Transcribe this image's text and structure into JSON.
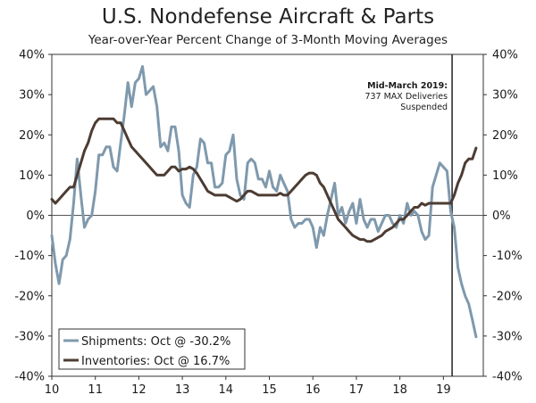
{
  "header": {
    "title": "U.S. Nondefense Aircraft & Parts",
    "subtitle": "Year-over-Year Percent Change of 3-Month Moving Averages"
  },
  "chart_data": {
    "type": "line",
    "title": "U.S. Nondefense Aircraft & Parts",
    "subtitle": "Year-over-Year Percent Change of 3-Month Moving Averages",
    "xlim": [
      2010,
      2019.917
    ],
    "ylim": [
      -40,
      40
    ],
    "y_ticks": [
      -40,
      -30,
      -20,
      -10,
      0,
      10,
      20,
      30,
      40
    ],
    "y_tick_labels": [
      "-40%",
      "-30%",
      "-20%",
      "-10%",
      "0%",
      "10%",
      "20%",
      "30%",
      "40%"
    ],
    "x_tick_labels": [
      "10",
      "11",
      "12",
      "13",
      "14",
      "15",
      "16",
      "17",
      "18",
      "19"
    ],
    "grid": false,
    "legend_position": "bottom-left",
    "annotation": {
      "x": 2019.2,
      "lines": [
        "Mid-March 2019:",
        "737 MAX Deliveries",
        "Suspended"
      ]
    },
    "series": [
      {
        "name": "Shipments",
        "legend_label": "Shipments: Oct @ -30.2%",
        "color": "#7f99ad",
        "points": [
          [
            2010.0,
            -5
          ],
          [
            2010.083,
            -12
          ],
          [
            2010.167,
            -17
          ],
          [
            2010.25,
            -11
          ],
          [
            2010.333,
            -10
          ],
          [
            2010.417,
            -6
          ],
          [
            2010.5,
            3
          ],
          [
            2010.583,
            14
          ],
          [
            2010.667,
            5
          ],
          [
            2010.75,
            -3
          ],
          [
            2010.833,
            -1
          ],
          [
            2010.917,
            0
          ],
          [
            2011.0,
            6
          ],
          [
            2011.083,
            15
          ],
          [
            2011.167,
            15
          ],
          [
            2011.25,
            17
          ],
          [
            2011.333,
            17
          ],
          [
            2011.417,
            12
          ],
          [
            2011.5,
            11
          ],
          [
            2011.583,
            18
          ],
          [
            2011.667,
            25
          ],
          [
            2011.75,
            33
          ],
          [
            2011.833,
            27
          ],
          [
            2011.917,
            33
          ],
          [
            2012.0,
            34
          ],
          [
            2012.083,
            37
          ],
          [
            2012.167,
            30
          ],
          [
            2012.25,
            31
          ],
          [
            2012.333,
            32
          ],
          [
            2012.417,
            27
          ],
          [
            2012.5,
            17
          ],
          [
            2012.583,
            18
          ],
          [
            2012.667,
            16
          ],
          [
            2012.75,
            22
          ],
          [
            2012.833,
            22
          ],
          [
            2012.917,
            16
          ],
          [
            2013.0,
            5
          ],
          [
            2013.083,
            3
          ],
          [
            2013.167,
            2
          ],
          [
            2013.25,
            10
          ],
          [
            2013.333,
            12
          ],
          [
            2013.417,
            19
          ],
          [
            2013.5,
            18
          ],
          [
            2013.583,
            13
          ],
          [
            2013.667,
            13
          ],
          [
            2013.75,
            7
          ],
          [
            2013.833,
            7
          ],
          [
            2013.917,
            8
          ],
          [
            2014.0,
            15
          ],
          [
            2014.083,
            16
          ],
          [
            2014.167,
            20
          ],
          [
            2014.25,
            9
          ],
          [
            2014.333,
            5
          ],
          [
            2014.417,
            4
          ],
          [
            2014.5,
            13
          ],
          [
            2014.583,
            14
          ],
          [
            2014.667,
            13
          ],
          [
            2014.75,
            9
          ],
          [
            2014.833,
            9
          ],
          [
            2014.917,
            7
          ],
          [
            2015.0,
            11
          ],
          [
            2015.083,
            7
          ],
          [
            2015.167,
            6
          ],
          [
            2015.25,
            10
          ],
          [
            2015.333,
            8
          ],
          [
            2015.417,
            6
          ],
          [
            2015.5,
            -1
          ],
          [
            2015.583,
            -3
          ],
          [
            2015.667,
            -2
          ],
          [
            2015.75,
            -2
          ],
          [
            2015.833,
            -1
          ],
          [
            2015.917,
            -1
          ],
          [
            2016.0,
            -3
          ],
          [
            2016.083,
            -8
          ],
          [
            2016.167,
            -3
          ],
          [
            2016.25,
            -5
          ],
          [
            2016.333,
            0
          ],
          [
            2016.417,
            4
          ],
          [
            2016.5,
            8
          ],
          [
            2016.583,
            0
          ],
          [
            2016.667,
            2
          ],
          [
            2016.75,
            -2
          ],
          [
            2016.833,
            1
          ],
          [
            2016.917,
            3
          ],
          [
            2017.0,
            -2
          ],
          [
            2017.083,
            4
          ],
          [
            2017.167,
            -1
          ],
          [
            2017.25,
            -3
          ],
          [
            2017.333,
            -1
          ],
          [
            2017.417,
            -1
          ],
          [
            2017.5,
            -4
          ],
          [
            2017.583,
            -2
          ],
          [
            2017.667,
            0
          ],
          [
            2017.75,
            0
          ],
          [
            2017.833,
            -2
          ],
          [
            2017.917,
            -3
          ],
          [
            2018.0,
            0
          ],
          [
            2018.083,
            -2
          ],
          [
            2018.167,
            3
          ],
          [
            2018.25,
            0
          ],
          [
            2018.333,
            1
          ],
          [
            2018.417,
            0
          ],
          [
            2018.5,
            -4
          ],
          [
            2018.583,
            -6
          ],
          [
            2018.667,
            -5
          ],
          [
            2018.75,
            7
          ],
          [
            2018.833,
            10
          ],
          [
            2018.917,
            13
          ],
          [
            2019.0,
            12
          ],
          [
            2019.083,
            11
          ],
          [
            2019.167,
            1
          ],
          [
            2019.25,
            -3
          ],
          [
            2019.333,
            -13
          ],
          [
            2019.417,
            -17
          ],
          [
            2019.5,
            -20
          ],
          [
            2019.583,
            -22
          ],
          [
            2019.667,
            -26
          ],
          [
            2019.75,
            -30.2
          ]
        ]
      },
      {
        "name": "Inventories",
        "legend_label": "Inventories: Oct @ 16.7%",
        "color": "#4d3c33",
        "points": [
          [
            2010.0,
            4
          ],
          [
            2010.083,
            3
          ],
          [
            2010.167,
            4
          ],
          [
            2010.25,
            5
          ],
          [
            2010.333,
            6
          ],
          [
            2010.417,
            7
          ],
          [
            2010.5,
            7
          ],
          [
            2010.583,
            10
          ],
          [
            2010.667,
            13
          ],
          [
            2010.75,
            16
          ],
          [
            2010.833,
            18
          ],
          [
            2010.917,
            21
          ],
          [
            2011.0,
            23
          ],
          [
            2011.083,
            24
          ],
          [
            2011.167,
            24
          ],
          [
            2011.25,
            24
          ],
          [
            2011.333,
            24
          ],
          [
            2011.417,
            24
          ],
          [
            2011.5,
            23
          ],
          [
            2011.583,
            23
          ],
          [
            2011.667,
            21
          ],
          [
            2011.75,
            19
          ],
          [
            2011.833,
            17
          ],
          [
            2011.917,
            16
          ],
          [
            2012.0,
            15
          ],
          [
            2012.083,
            14
          ],
          [
            2012.167,
            13
          ],
          [
            2012.25,
            12
          ],
          [
            2012.333,
            11
          ],
          [
            2012.417,
            10
          ],
          [
            2012.5,
            10
          ],
          [
            2012.583,
            10
          ],
          [
            2012.667,
            11
          ],
          [
            2012.75,
            12
          ],
          [
            2012.833,
            12
          ],
          [
            2012.917,
            11
          ],
          [
            2013.0,
            11.5
          ],
          [
            2013.083,
            11.5
          ],
          [
            2013.167,
            12
          ],
          [
            2013.25,
            11.5
          ],
          [
            2013.333,
            10.5
          ],
          [
            2013.417,
            9
          ],
          [
            2013.5,
            7.5
          ],
          [
            2013.583,
            6
          ],
          [
            2013.667,
            5.5
          ],
          [
            2013.75,
            5
          ],
          [
            2013.833,
            5
          ],
          [
            2013.917,
            5
          ],
          [
            2014.0,
            5
          ],
          [
            2014.083,
            4.5
          ],
          [
            2014.167,
            4
          ],
          [
            2014.25,
            3.5
          ],
          [
            2014.333,
            4
          ],
          [
            2014.417,
            5
          ],
          [
            2014.5,
            6
          ],
          [
            2014.583,
            6
          ],
          [
            2014.667,
            5.5
          ],
          [
            2014.75,
            5
          ],
          [
            2014.833,
            5
          ],
          [
            2014.917,
            5
          ],
          [
            2015.0,
            5
          ],
          [
            2015.083,
            5
          ],
          [
            2015.167,
            5
          ],
          [
            2015.25,
            5.5
          ],
          [
            2015.333,
            5
          ],
          [
            2015.417,
            5
          ],
          [
            2015.5,
            6
          ],
          [
            2015.583,
            7
          ],
          [
            2015.667,
            8
          ],
          [
            2015.75,
            9
          ],
          [
            2015.833,
            10
          ],
          [
            2015.917,
            10.5
          ],
          [
            2016.0,
            10.5
          ],
          [
            2016.083,
            10
          ],
          [
            2016.167,
            8
          ],
          [
            2016.25,
            7
          ],
          [
            2016.333,
            5
          ],
          [
            2016.417,
            3
          ],
          [
            2016.5,
            1
          ],
          [
            2016.583,
            -1
          ],
          [
            2016.667,
            -2
          ],
          [
            2016.75,
            -3
          ],
          [
            2016.833,
            -4
          ],
          [
            2016.917,
            -5
          ],
          [
            2017.0,
            -5.5
          ],
          [
            2017.083,
            -6
          ],
          [
            2017.167,
            -6
          ],
          [
            2017.25,
            -6.5
          ],
          [
            2017.333,
            -6.5
          ],
          [
            2017.417,
            -6
          ],
          [
            2017.5,
            -5.5
          ],
          [
            2017.583,
            -5
          ],
          [
            2017.667,
            -4
          ],
          [
            2017.75,
            -3.5
          ],
          [
            2017.833,
            -3
          ],
          [
            2017.917,
            -2
          ],
          [
            2018.0,
            -1
          ],
          [
            2018.083,
            -1
          ],
          [
            2018.167,
            0
          ],
          [
            2018.25,
            1
          ],
          [
            2018.333,
            2
          ],
          [
            2018.417,
            2
          ],
          [
            2018.5,
            3
          ],
          [
            2018.583,
            2.5
          ],
          [
            2018.667,
            3
          ],
          [
            2018.75,
            3
          ],
          [
            2018.833,
            3
          ],
          [
            2018.917,
            3
          ],
          [
            2019.0,
            3
          ],
          [
            2019.083,
            3
          ],
          [
            2019.167,
            3
          ],
          [
            2019.25,
            5
          ],
          [
            2019.333,
            8
          ],
          [
            2019.417,
            10
          ],
          [
            2019.5,
            13
          ],
          [
            2019.583,
            14
          ],
          [
            2019.667,
            14
          ],
          [
            2019.75,
            16.7
          ]
        ]
      }
    ]
  }
}
